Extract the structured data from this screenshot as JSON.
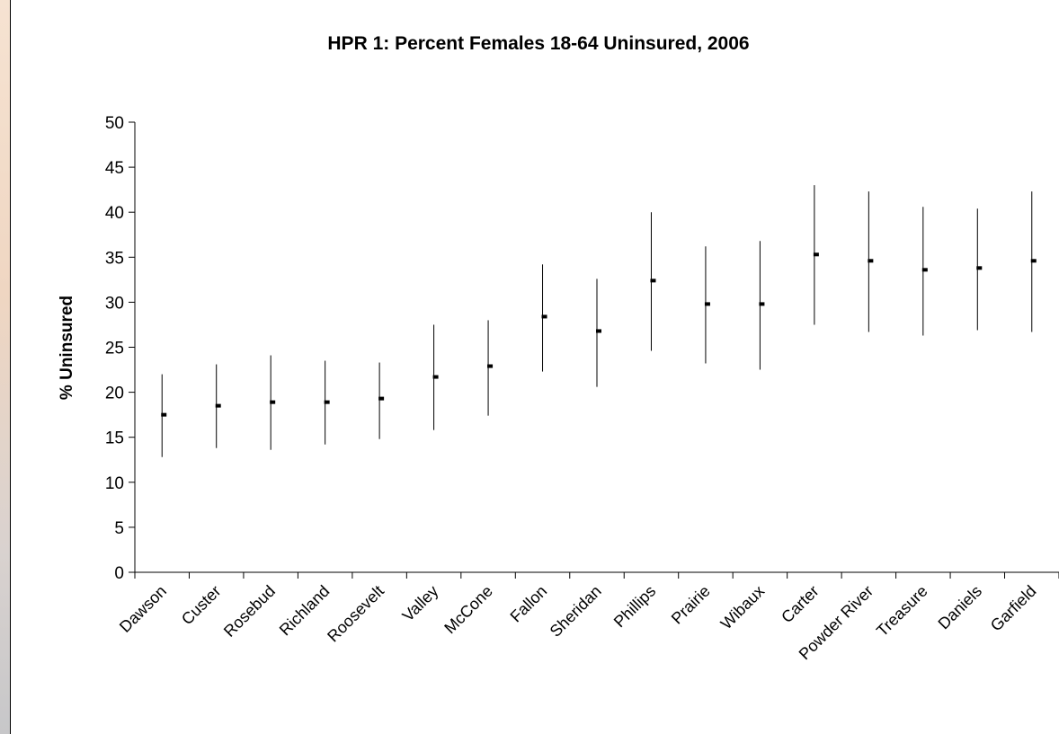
{
  "chart_data": {
    "type": "error-bar",
    "title": "HPR 1: Percent Females 18-64 Uninsured, 2006",
    "ylabel": "% Uninsured",
    "xlabel": "",
    "ylim": [
      0,
      50
    ],
    "yticks": [
      0,
      5,
      10,
      15,
      20,
      25,
      30,
      35,
      40,
      45,
      50
    ],
    "categories": [
      "Dawson",
      "Custer",
      "Rosebud",
      "Richland",
      "Roosevelt",
      "Valley",
      "McCone",
      "Fallon",
      "Sheridan",
      "Phillips",
      "Prairie",
      "Wibaux",
      "Carter",
      "Powder River",
      "Treasure",
      "Daniels",
      "Garfield"
    ],
    "values": [
      17.5,
      18.5,
      18.9,
      18.9,
      19.3,
      21.7,
      22.9,
      28.4,
      26.8,
      32.4,
      29.8,
      29.8,
      35.3,
      34.6,
      33.6,
      33.8,
      34.6
    ],
    "lower": [
      12.8,
      13.8,
      13.6,
      14.2,
      14.8,
      15.8,
      17.4,
      22.3,
      20.6,
      24.6,
      23.2,
      22.5,
      27.5,
      26.7,
      26.3,
      26.9,
      26.7
    ],
    "upper": [
      22.0,
      23.1,
      24.1,
      23.5,
      23.3,
      27.5,
      28.0,
      34.2,
      32.6,
      40.0,
      36.2,
      36.8,
      43.0,
      42.3,
      40.6,
      40.4,
      42.3
    ],
    "grid": false,
    "legend": "none"
  }
}
